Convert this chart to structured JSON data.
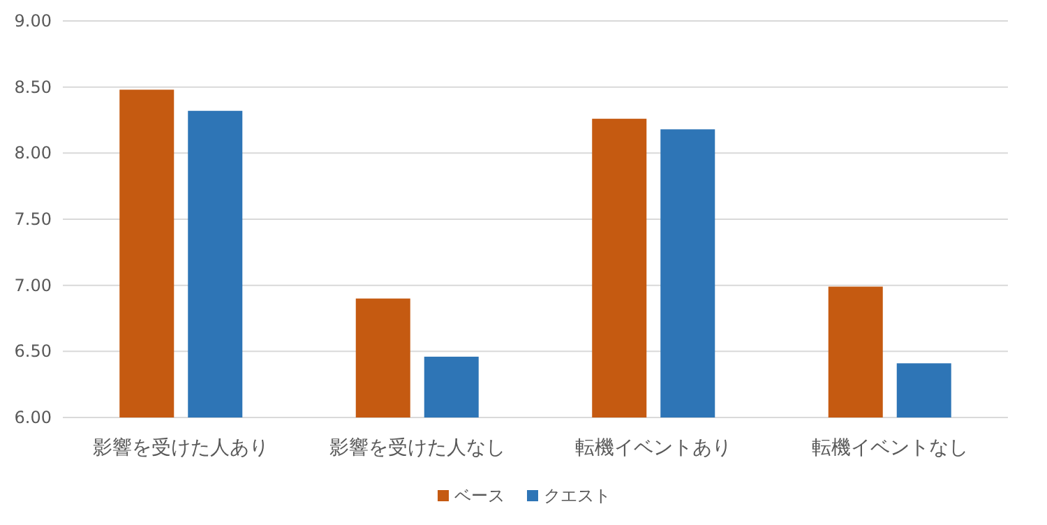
{
  "chart_data": {
    "type": "bar",
    "categories": [
      "影響を受けた人あり",
      "影響を受けた人なし",
      "転機イベントあり",
      "転機イベントなし"
    ],
    "series": [
      {
        "name": "ベース",
        "color": "#c55a11",
        "values": [
          8.48,
          6.9,
          8.26,
          6.99
        ]
      },
      {
        "name": "クエスト",
        "color": "#2e75b6",
        "values": [
          8.32,
          6.46,
          8.18,
          6.41
        ]
      }
    ],
    "ylim": [
      6,
      9
    ],
    "yticks": [
      {
        "value": 6,
        "label": "6.00"
      },
      {
        "value": 6.5,
        "label": "6.50"
      },
      {
        "value": 7,
        "label": "7.00"
      },
      {
        "value": 7.5,
        "label": "7.50"
      },
      {
        "value": 8,
        "label": "8.00"
      },
      {
        "value": 8.5,
        "label": "8.50"
      },
      {
        "value": 9,
        "label": "9.00"
      }
    ],
    "grid": "y",
    "legend": "bottom"
  }
}
